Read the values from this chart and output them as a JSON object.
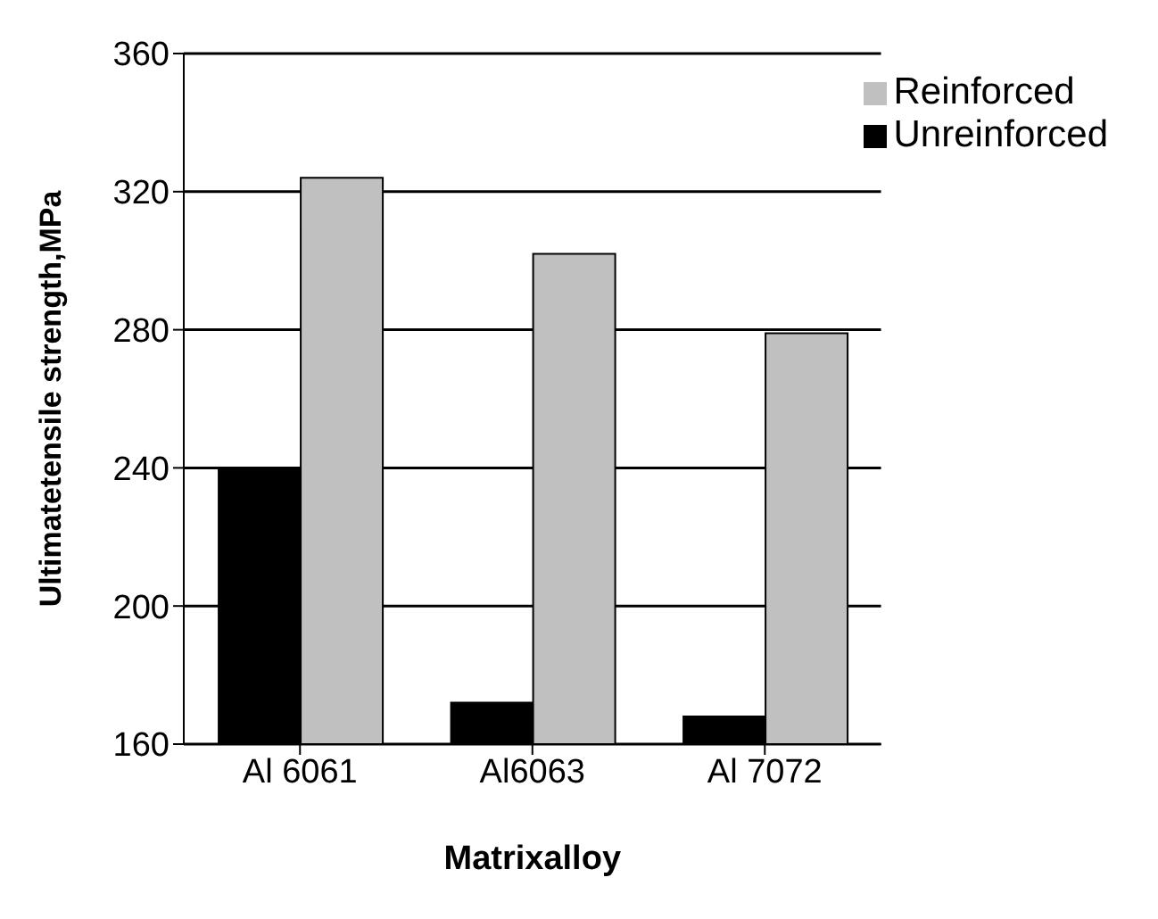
{
  "chart_data": {
    "type": "bar",
    "xlabel": "Matrixalloy",
    "ylabel": "Ultimatetensile strength,MPa",
    "categories": [
      "Al 6061",
      "Al6063",
      "Al 7072"
    ],
    "series": [
      {
        "name": "Unreinforced",
        "color": "#000000",
        "values": [
          240,
          172,
          168
        ]
      },
      {
        "name": "Reinforced",
        "color": "#c0c0c0",
        "values": [
          324,
          302,
          279
        ]
      }
    ],
    "ylim": [
      160,
      360
    ],
    "yticks": [
      160,
      200,
      240,
      280,
      320,
      360
    ],
    "grid": "y",
    "legend": "top right"
  }
}
